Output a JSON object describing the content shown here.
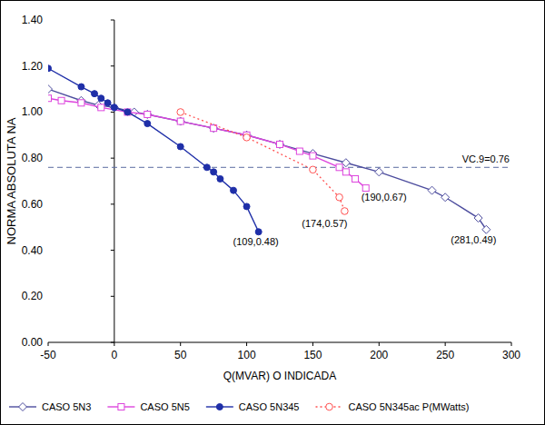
{
  "chart_data": {
    "type": "line",
    "x_label": "Q(MVAR) O INDICADA",
    "y_label": "NORMA ABSOLUTA NA",
    "xlim": [
      -50,
      300
    ],
    "xticks": [
      -50,
      0,
      50,
      100,
      150,
      200,
      250,
      300
    ],
    "ylim": [
      0,
      1.4
    ],
    "yticks": [
      {
        "value": 0,
        "label": "0.00"
      },
      {
        "value": 0.2,
        "label": "0.20"
      },
      {
        "value": 0.4,
        "label": "0.40"
      },
      {
        "value": 0.6,
        "label": "0.60"
      },
      {
        "value": 0.8,
        "label": "0.80"
      },
      {
        "value": 1.0,
        "label": "1.00"
      },
      {
        "value": 1.2,
        "label": "1.20"
      },
      {
        "value": 1.4,
        "label": "1.40"
      }
    ],
    "grid": false,
    "legend": "bottom",
    "series": [
      {
        "name": "CASO 5N3",
        "color": "#4d4d9e",
        "marker": "diamond",
        "line_style": "solid",
        "x": [
          -50,
          -25,
          -12,
          0,
          15,
          25,
          50,
          75,
          100,
          125,
          150,
          175,
          200,
          240,
          250,
          275,
          281
        ],
        "values": [
          1.1,
          1.05,
          1.03,
          1.02,
          1.0,
          0.99,
          0.96,
          0.93,
          0.9,
          0.86,
          0.82,
          0.78,
          0.74,
          0.66,
          0.63,
          0.54,
          0.49
        ]
      },
      {
        "name": "CASO 5N5",
        "color": "#dd44dd",
        "marker": "square",
        "line_style": "solid",
        "x": [
          -50,
          -40,
          -25,
          -10,
          10,
          25,
          50,
          75,
          100,
          125,
          140,
          150,
          170,
          175,
          182,
          190
        ],
        "values": [
          1.06,
          1.05,
          1.04,
          1.02,
          1.0,
          0.99,
          0.96,
          0.93,
          0.9,
          0.86,
          0.83,
          0.81,
          0.76,
          0.74,
          0.71,
          0.67
        ]
      },
      {
        "name": "CASO 5N345",
        "color": "#1f2fa8",
        "marker": "circle",
        "line_style": "solid",
        "x": [
          -50,
          -25,
          -15,
          -10,
          -5,
          0,
          10,
          25,
          50,
          70,
          75,
          80,
          90,
          100,
          109
        ],
        "values": [
          1.19,
          1.11,
          1.08,
          1.06,
          1.04,
          1.02,
          1.0,
          0.95,
          0.85,
          0.76,
          0.74,
          0.71,
          0.66,
          0.59,
          0.48
        ]
      },
      {
        "name": "CASO 5N345ac P(MWatts)",
        "color": "#ff5050",
        "marker": "circle-open",
        "line_style": "dotted",
        "x": [
          50,
          100,
          150,
          170,
          174
        ],
        "values": [
          1.0,
          0.89,
          0.75,
          0.63,
          0.57
        ]
      }
    ],
    "reference_lines": [
      {
        "value": 0.76,
        "label": "VC.9=0.76"
      }
    ],
    "annotations": [
      {
        "text": "(109,0.48)",
        "x": 109,
        "y": 0.48
      },
      {
        "text": "(174,0.57)",
        "x": 174,
        "y": 0.57
      },
      {
        "text": "(190,0.67)",
        "x": 190,
        "y": 0.67
      },
      {
        "text": "(281,0.49)",
        "x": 281,
        "y": 0.49
      }
    ]
  }
}
